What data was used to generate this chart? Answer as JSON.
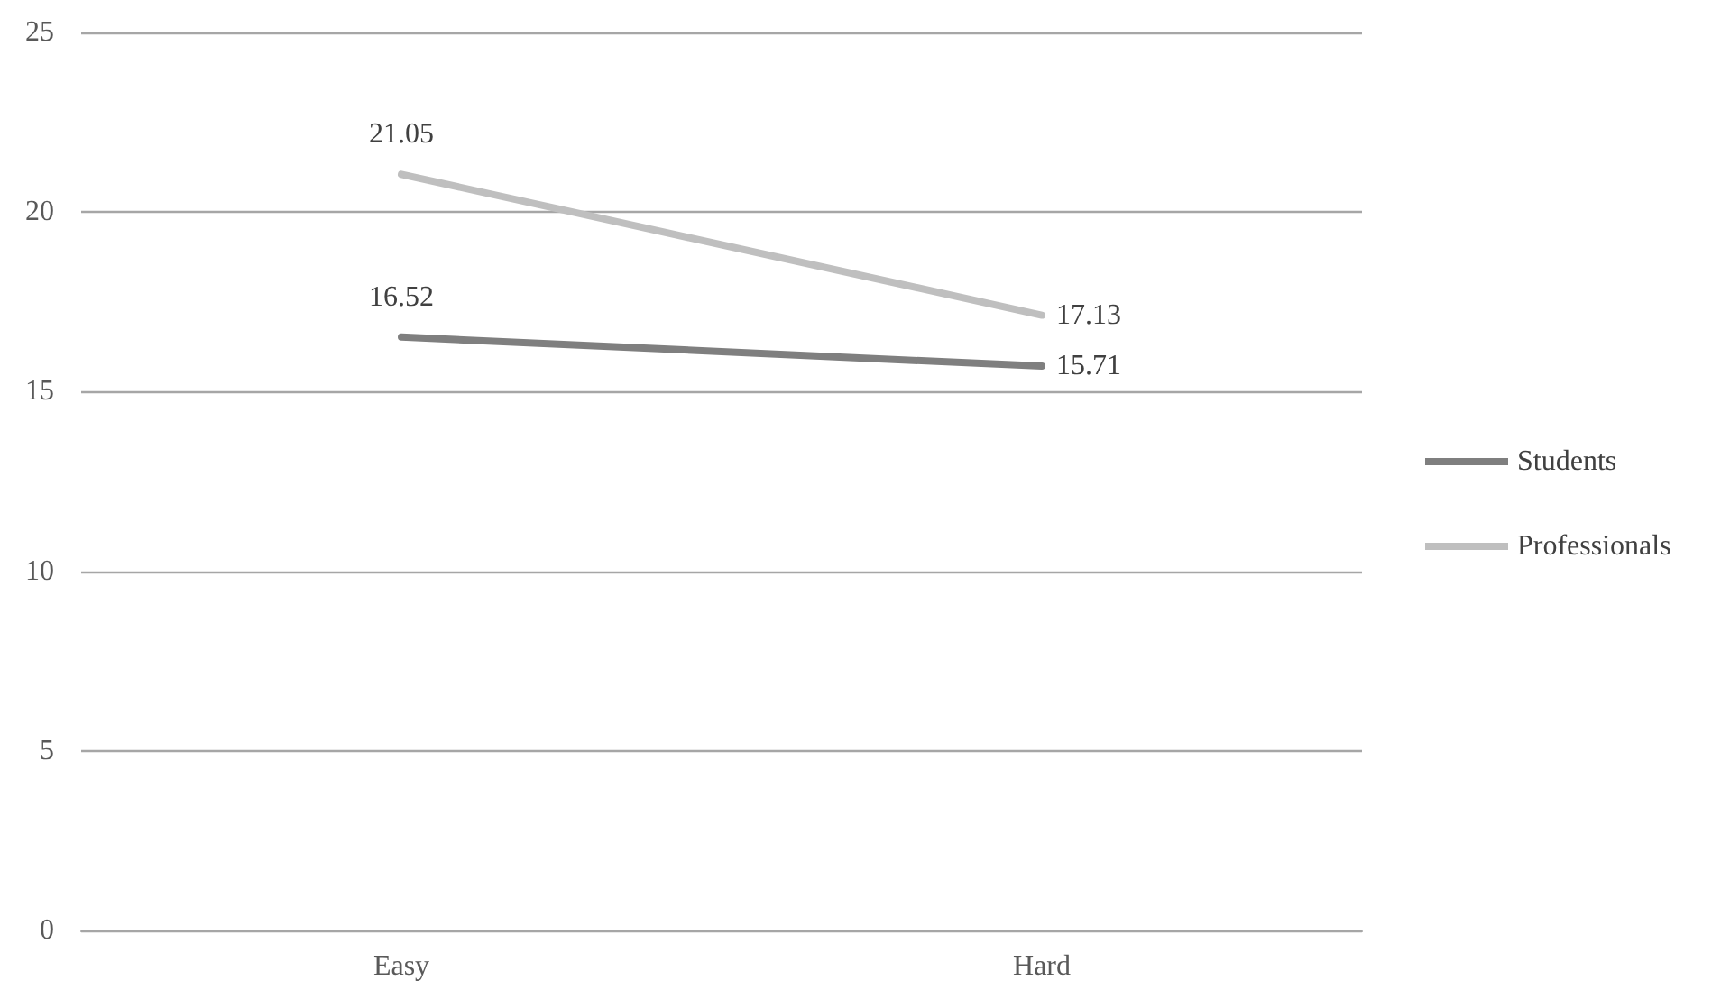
{
  "chart_data": {
    "type": "line",
    "categories": [
      "Easy",
      "Hard"
    ],
    "series": [
      {
        "name": "Students",
        "color": "#7f7f7f",
        "values": [
          16.52,
          15.71
        ]
      },
      {
        "name": "Professionals",
        "color": "#bfbfbf",
        "values": [
          21.05,
          17.13
        ]
      }
    ],
    "ylim": [
      0,
      25
    ],
    "yticks": [
      0,
      5,
      10,
      15,
      20,
      25
    ],
    "grid": "y",
    "legend": "right",
    "marker": "none",
    "line_style": "solid",
    "data_labels": true
  }
}
